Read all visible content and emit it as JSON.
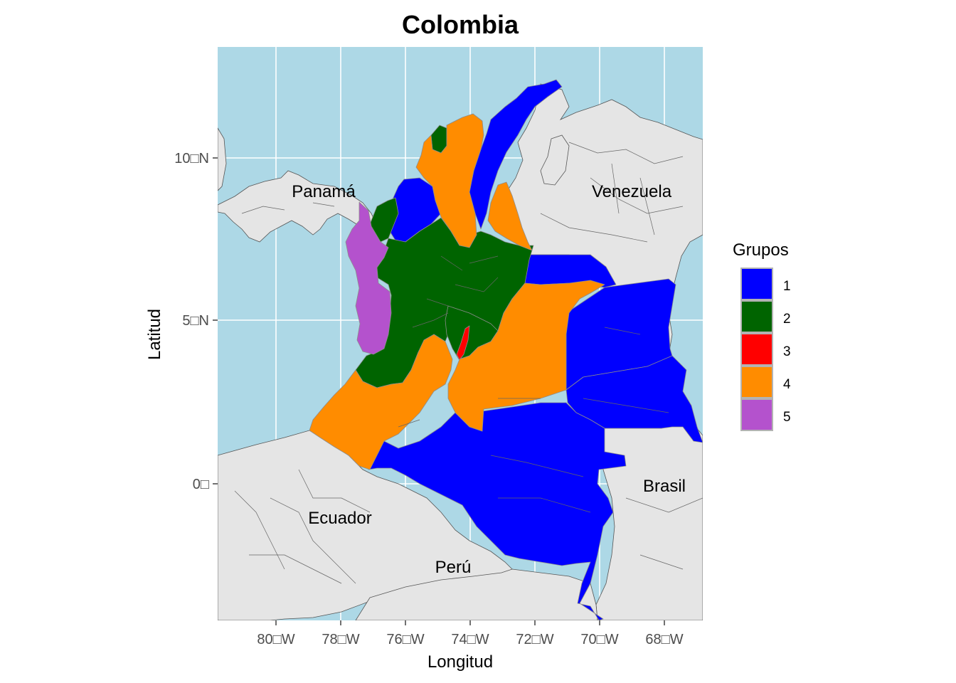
{
  "title": "Colombia",
  "axes": {
    "xlabel": "Longitud",
    "ylabel": "Latitud",
    "x_ticks": [
      {
        "value": -80,
        "label": "80□W"
      },
      {
        "value": -78,
        "label": "78□W"
      },
      {
        "value": -76,
        "label": "76□W"
      },
      {
        "value": -74,
        "label": "74□W"
      },
      {
        "value": -72,
        "label": "72□W"
      },
      {
        "value": -70,
        "label": "70□W"
      },
      {
        "value": -68,
        "label": "68□W"
      }
    ],
    "y_ticks": [
      {
        "value": 0,
        "label": "0□"
      },
      {
        "value": 5,
        "label": "5□N"
      },
      {
        "value": 10,
        "label": "10□N"
      }
    ],
    "xlim": [
      -81.8,
      -66.8
    ],
    "ylim": [
      -4.2,
      13.4
    ]
  },
  "colors": {
    "sea": "#add8e6",
    "land": "#e5e5e5",
    "grid": "#ffffff",
    "group_1": "#0000ff",
    "group_2": "#006400",
    "group_3": "#ff0000",
    "group_4": "#ff8c00",
    "group_5": "#b452cd"
  },
  "country_labels": [
    {
      "name": "Panamá",
      "lon": -79.0,
      "lat": 8.8
    },
    {
      "name": "Venezuela",
      "lon": -66.9,
      "lat": 8.8,
      "ref": "Venezuela"
    },
    {
      "name": "Brasil",
      "lon": -68.0,
      "lat": -0.1
    },
    {
      "name": "Ecuador",
      "lon": -78.0,
      "lat": -1.1
    },
    {
      "name": "Perú",
      "lon": -74.4,
      "lat": -2.6
    }
  ],
  "legend": {
    "title": "Grupos",
    "items": [
      {
        "label": "1",
        "color": "#0000ff"
      },
      {
        "label": "2",
        "color": "#006400"
      },
      {
        "label": "3",
        "color": "#ff0000"
      },
      {
        "label": "4",
        "color": "#ff8c00"
      },
      {
        "label": "5",
        "color": "#b452cd"
      }
    ]
  }
}
